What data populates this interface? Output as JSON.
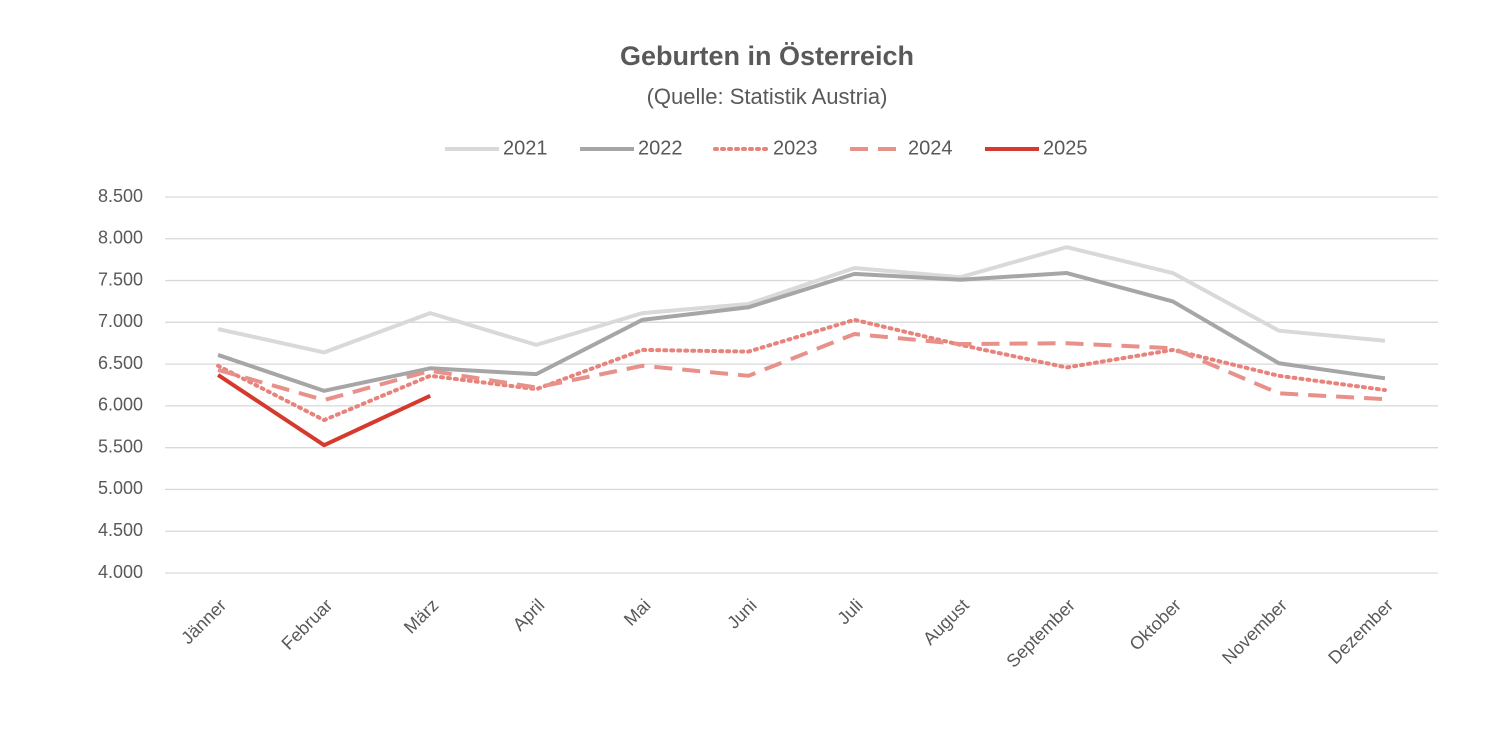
{
  "chart_data": {
    "type": "line",
    "title": "Geburten in Österreich",
    "subtitle": "(Quelle: Statistik Austria)",
    "categories": [
      "Jänner",
      "Februar",
      "März",
      "April",
      "Mai",
      "Juni",
      "Juli",
      "August",
      "September",
      "Oktober",
      "November",
      "Dezember"
    ],
    "series": [
      {
        "name": "2021",
        "color": "#d9d9d9",
        "style": "solid",
        "values": [
          6920,
          6640,
          7110,
          6730,
          7110,
          7220,
          7650,
          7540,
          7900,
          7590,
          6900,
          6780
        ]
      },
      {
        "name": "2022",
        "color": "#a6a6a6",
        "style": "solid",
        "values": [
          6610,
          6180,
          6450,
          6380,
          7030,
          7180,
          7580,
          7510,
          7590,
          7250,
          6510,
          6330
        ]
      },
      {
        "name": "2023",
        "color": "#e8837c",
        "style": "dotted",
        "values": [
          6480,
          5830,
          6360,
          6200,
          6670,
          6650,
          7030,
          6730,
          6460,
          6670,
          6360,
          6190
        ]
      },
      {
        "name": "2024",
        "color": "#e8908a",
        "style": "dashed",
        "values": [
          6430,
          6070,
          6420,
          6220,
          6480,
          6360,
          6860,
          6740,
          6750,
          6690,
          6150,
          6080
        ]
      },
      {
        "name": "2025",
        "color": "#d63a2e",
        "style": "solid",
        "values": [
          6370,
          5530,
          6120,
          null,
          null,
          null,
          null,
          null,
          null,
          null,
          null,
          null
        ]
      }
    ],
    "ylim": [
      4000,
      8500
    ],
    "yticks": [
      {
        "value": 4000,
        "label": "4.000"
      },
      {
        "value": 4500,
        "label": "4.500"
      },
      {
        "value": 5000,
        "label": "5.000"
      },
      {
        "value": 5500,
        "label": "5.500"
      },
      {
        "value": 6000,
        "label": "6.000"
      },
      {
        "value": 6500,
        "label": "6.500"
      },
      {
        "value": 7000,
        "label": "7.000"
      },
      {
        "value": 7500,
        "label": "7.500"
      },
      {
        "value": 8000,
        "label": "8.000"
      },
      {
        "value": 8500,
        "label": "8.500"
      }
    ],
    "grid": true,
    "legend": "top"
  }
}
